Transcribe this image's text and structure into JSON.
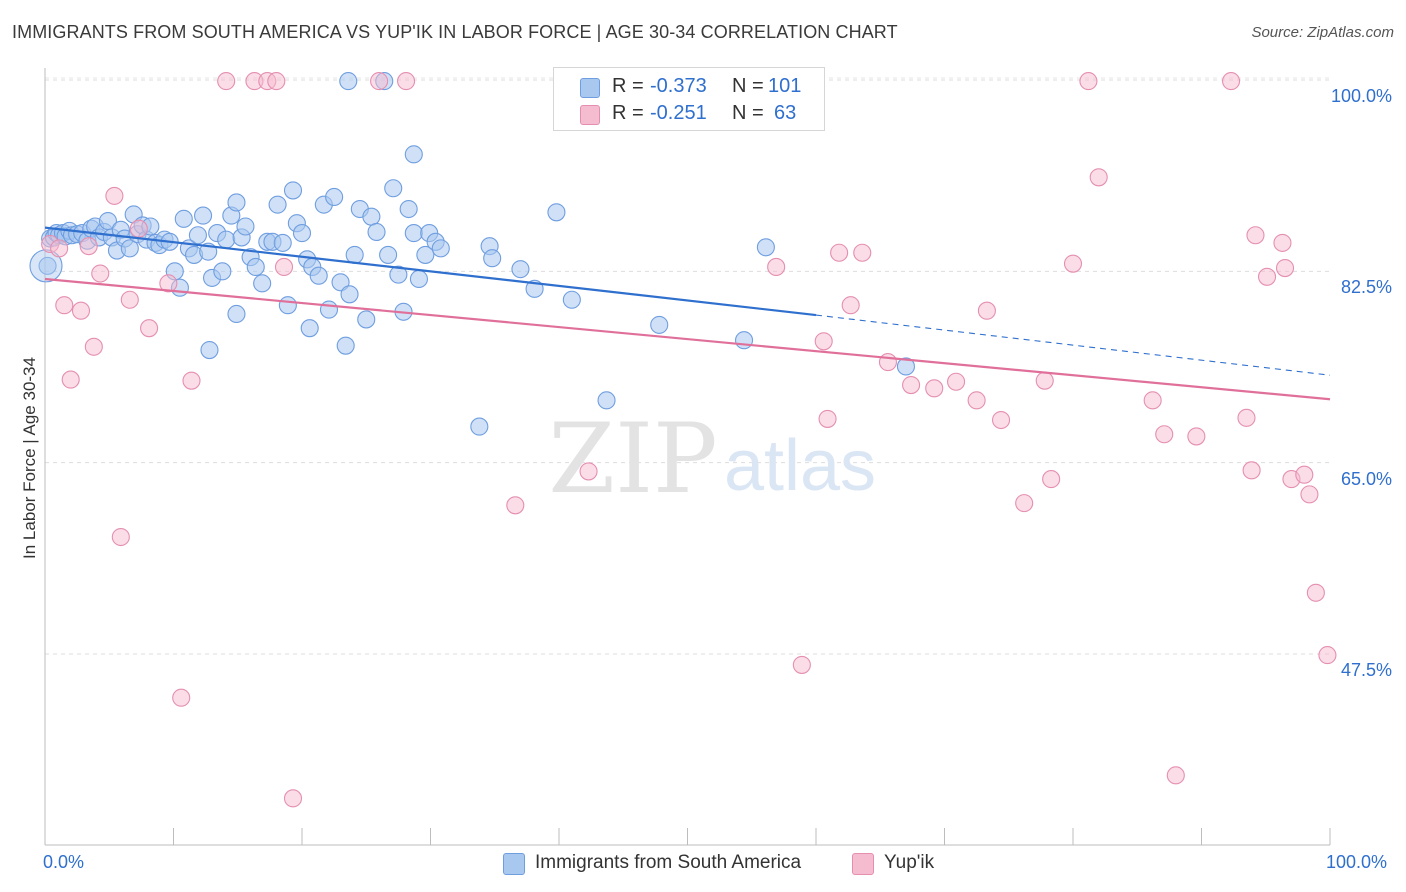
{
  "title": "IMMIGRANTS FROM SOUTH AMERICA VS YUP'IK IN LABOR FORCE | AGE 30-34 CORRELATION CHART",
  "source": "Source: ZipAtlas.com",
  "watermark": {
    "zip": "ZIP",
    "atlas": "atlas"
  },
  "colors": {
    "blue": "#2f6fce",
    "blue_fill": "#a9c8f0",
    "pink": "#e0709a",
    "pink_fill": "#f5bcd0",
    "grid": "#dddddd"
  },
  "legend": {
    "rows": [
      {
        "r_label": "R =",
        "r_value": "-0.373",
        "n_label": "N =",
        "n_value": "101"
      },
      {
        "r_label": "R =",
        "r_value": "-0.251",
        "n_label": "N =",
        "n_value": "63"
      }
    ]
  },
  "bottom_legend": {
    "series1": "Immigrants from South America",
    "series2": "Yup'ik"
  },
  "chart_data": {
    "type": "scatter",
    "title": "IMMIGRANTS FROM SOUTH AMERICA VS YUP'IK IN LABOR FORCE | AGE 30-34 CORRELATION CHART",
    "xlabel": "",
    "ylabel": "In Labor Force | Age 30-34",
    "xlim": [
      0,
      100
    ],
    "ylim": [
      31.5,
      101.5
    ],
    "x_tick_labels": [
      "0.0%",
      "100.0%"
    ],
    "y_ticks": [
      47.5,
      65.0,
      82.5,
      100.0
    ],
    "y_tick_labels": [
      "47.5%",
      "65.0%",
      "82.5%",
      "100.0%"
    ],
    "grid": true,
    "legend_position": "top-center",
    "series": [
      {
        "name": "Immigrants from South America",
        "color": "#2f6fce",
        "trend": {
          "x": [
            0,
            60,
            100
          ],
          "y": [
            86.5,
            78.5,
            73.0
          ],
          "solid_until": 60
        },
        "points": [
          [
            0.2,
            83.0
          ],
          [
            0.4,
            85.5
          ],
          [
            0.7,
            85.6
          ],
          [
            0.9,
            86.0
          ],
          [
            1.1,
            85.8
          ],
          [
            1.4,
            86.0
          ],
          [
            1.6,
            85.7
          ],
          [
            1.9,
            86.2
          ],
          [
            2.1,
            85.8
          ],
          [
            2.5,
            85.9
          ],
          [
            2.9,
            86.0
          ],
          [
            3.3,
            85.3
          ],
          [
            3.6,
            86.4
          ],
          [
            3.9,
            86.6
          ],
          [
            4.2,
            85.6
          ],
          [
            4.6,
            86.1
          ],
          [
            4.9,
            87.1
          ],
          [
            5.2,
            85.6
          ],
          [
            5.6,
            84.4
          ],
          [
            5.9,
            86.3
          ],
          [
            6.2,
            85.5
          ],
          [
            6.6,
            84.6
          ],
          [
            6.9,
            87.7
          ],
          [
            7.2,
            85.9
          ],
          [
            7.6,
            86.7
          ],
          [
            7.9,
            85.4
          ],
          [
            8.2,
            86.6
          ],
          [
            8.6,
            85.1
          ],
          [
            8.9,
            84.9
          ],
          [
            9.3,
            85.4
          ],
          [
            9.7,
            85.2
          ],
          [
            10.1,
            82.5
          ],
          [
            10.5,
            81.0
          ],
          [
            10.8,
            87.3
          ],
          [
            11.2,
            84.6
          ],
          [
            11.6,
            84.0
          ],
          [
            11.9,
            85.8
          ],
          [
            12.3,
            87.6
          ],
          [
            12.7,
            84.3
          ],
          [
            13.0,
            81.9
          ],
          [
            13.4,
            86.0
          ],
          [
            13.8,
            82.5
          ],
          [
            14.1,
            85.4
          ],
          [
            14.5,
            87.6
          ],
          [
            14.9,
            88.8
          ],
          [
            15.3,
            85.6
          ],
          [
            15.6,
            86.6
          ],
          [
            16.0,
            83.8
          ],
          [
            16.4,
            82.9
          ],
          [
            16.9,
            81.4
          ],
          [
            17.3,
            85.2
          ],
          [
            17.7,
            85.2
          ],
          [
            18.1,
            88.6
          ],
          [
            18.5,
            85.1
          ],
          [
            18.9,
            79.4
          ],
          [
            19.3,
            89.9
          ],
          [
            19.6,
            86.9
          ],
          [
            20.0,
            86.0
          ],
          [
            20.4,
            83.6
          ],
          [
            20.8,
            82.9
          ],
          [
            21.3,
            82.1
          ],
          [
            21.7,
            88.6
          ],
          [
            22.1,
            79.0
          ],
          [
            22.5,
            89.3
          ],
          [
            23.0,
            81.5
          ],
          [
            23.4,
            75.7
          ],
          [
            23.7,
            80.4
          ],
          [
            24.1,
            84.0
          ],
          [
            24.5,
            88.2
          ],
          [
            25.0,
            78.1
          ],
          [
            25.4,
            87.5
          ],
          [
            25.8,
            86.1
          ],
          [
            23.6,
            99.9
          ],
          [
            26.4,
            99.9
          ],
          [
            26.7,
            84.0
          ],
          [
            27.1,
            90.1
          ],
          [
            27.5,
            82.2
          ],
          [
            27.9,
            78.8
          ],
          [
            28.3,
            88.2
          ],
          [
            28.7,
            86.0
          ],
          [
            29.1,
            81.8
          ],
          [
            29.6,
            84.0
          ],
          [
            29.9,
            86.0
          ],
          [
            30.4,
            85.2
          ],
          [
            30.8,
            84.6
          ],
          [
            14.9,
            78.6
          ],
          [
            12.8,
            75.3
          ],
          [
            20.6,
            77.3
          ],
          [
            28.7,
            93.2
          ],
          [
            33.8,
            68.3
          ],
          [
            34.6,
            84.8
          ],
          [
            34.8,
            83.7
          ],
          [
            37.0,
            82.7
          ],
          [
            38.1,
            80.9
          ],
          [
            39.8,
            87.9
          ],
          [
            41.0,
            79.9
          ],
          [
            43.7,
            70.7
          ],
          [
            47.8,
            77.6
          ],
          [
            56.1,
            84.7
          ],
          [
            67.0,
            73.8
          ],
          [
            54.4,
            76.2
          ]
        ]
      },
      {
        "name": "Yup'ik",
        "color": "#e0709a",
        "trend": {
          "x": [
            0,
            100
          ],
          "y": [
            81.8,
            70.8
          ]
        },
        "points": [
          [
            0.4,
            85.0
          ],
          [
            1.1,
            84.6
          ],
          [
            1.5,
            79.4
          ],
          [
            2.0,
            72.6
          ],
          [
            2.8,
            78.9
          ],
          [
            3.4,
            84.8
          ],
          [
            3.8,
            75.6
          ],
          [
            4.3,
            82.3
          ],
          [
            5.4,
            89.4
          ],
          [
            5.9,
            58.2
          ],
          [
            6.6,
            79.9
          ],
          [
            7.3,
            86.4
          ],
          [
            8.1,
            77.3
          ],
          [
            9.6,
            81.4
          ],
          [
            10.6,
            43.5
          ],
          [
            11.4,
            72.5
          ],
          [
            14.1,
            99.9
          ],
          [
            16.3,
            99.9
          ],
          [
            17.3,
            99.9
          ],
          [
            18.0,
            99.9
          ],
          [
            18.6,
            82.9
          ],
          [
            19.3,
            34.3
          ],
          [
            26.0,
            99.9
          ],
          [
            28.1,
            99.9
          ],
          [
            36.6,
            61.1
          ],
          [
            42.3,
            64.2
          ],
          [
            51.4,
            99.9
          ],
          [
            56.9,
            82.9
          ],
          [
            58.9,
            46.5
          ],
          [
            60.6,
            76.1
          ],
          [
            60.9,
            69.0
          ],
          [
            61.8,
            84.2
          ],
          [
            62.7,
            79.4
          ],
          [
            63.6,
            84.2
          ],
          [
            65.6,
            74.2
          ],
          [
            67.4,
            72.1
          ],
          [
            69.2,
            71.8
          ],
          [
            70.9,
            72.4
          ],
          [
            72.5,
            70.7
          ],
          [
            73.3,
            78.9
          ],
          [
            74.4,
            68.9
          ],
          [
            76.2,
            61.3
          ],
          [
            77.8,
            72.5
          ],
          [
            78.3,
            63.5
          ],
          [
            80.0,
            83.2
          ],
          [
            81.2,
            99.9
          ],
          [
            82.0,
            91.1
          ],
          [
            86.2,
            70.7
          ],
          [
            87.1,
            67.6
          ],
          [
            88.0,
            36.4
          ],
          [
            89.6,
            67.4
          ],
          [
            92.3,
            99.9
          ],
          [
            93.5,
            69.1
          ],
          [
            93.9,
            64.3
          ],
          [
            94.2,
            85.8
          ],
          [
            95.1,
            82.0
          ],
          [
            96.3,
            85.1
          ],
          [
            96.5,
            82.8
          ],
          [
            97.0,
            63.5
          ],
          [
            98.0,
            63.9
          ],
          [
            98.4,
            62.1
          ],
          [
            98.9,
            53.1
          ],
          [
            99.8,
            47.4
          ]
        ]
      }
    ]
  }
}
